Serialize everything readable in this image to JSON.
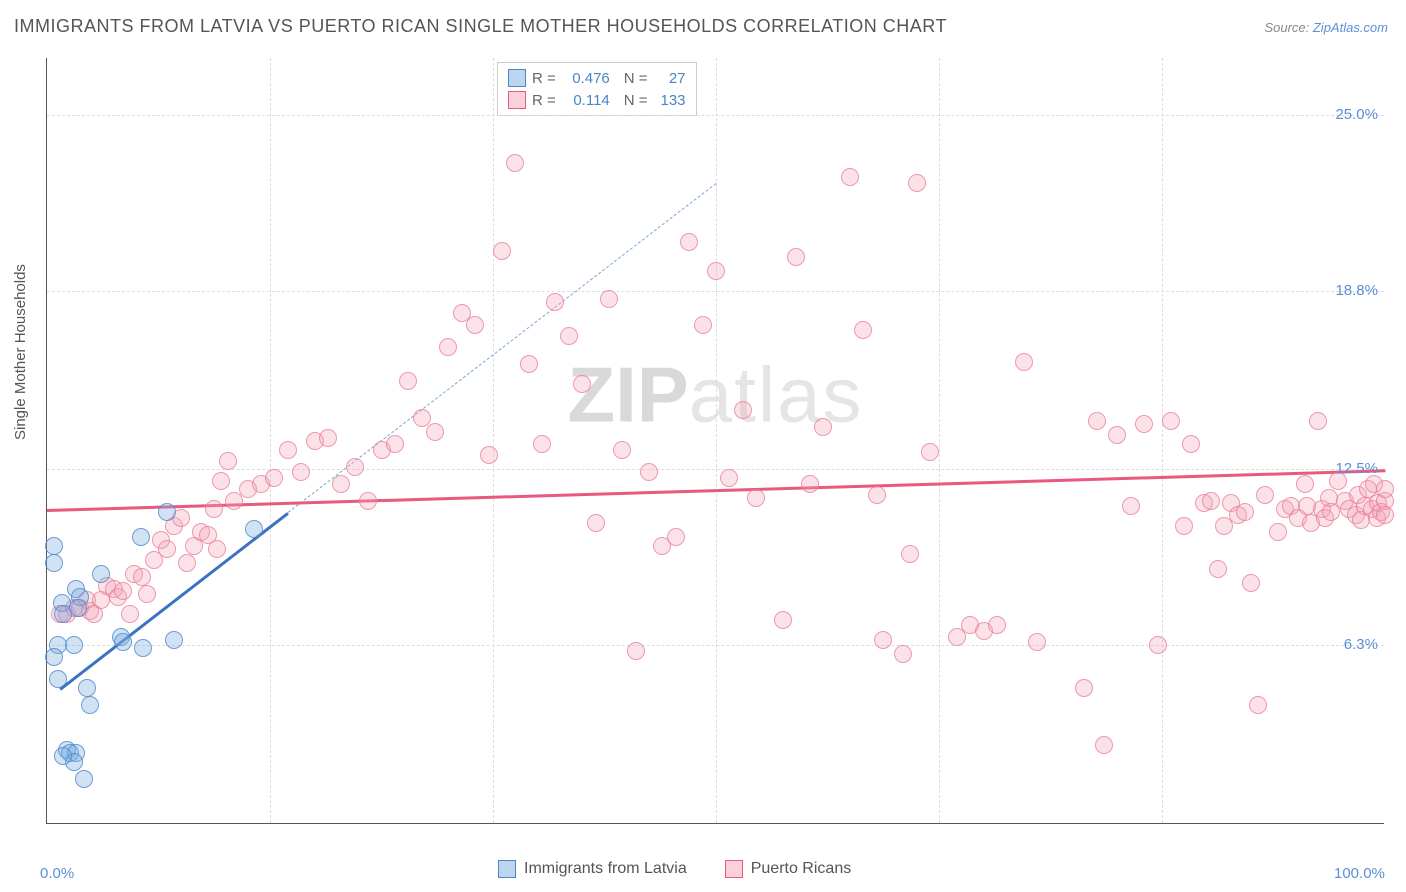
{
  "title": "IMMIGRANTS FROM LATVIA VS PUERTO RICAN SINGLE MOTHER HOUSEHOLDS CORRELATION CHART",
  "source_label": "Source: ",
  "source_link": "ZipAtlas.com",
  "y_axis_label": "Single Mother Households",
  "watermark_part1": "ZIP",
  "watermark_part2": "atlas",
  "chart": {
    "type": "scatter",
    "background_color": "#ffffff",
    "grid_color": "#dddddd",
    "axis_color": "#555555",
    "xlim": [
      0,
      100
    ],
    "ylim": [
      0,
      27
    ],
    "x_ticks": [
      0,
      100
    ],
    "x_tick_labels": [
      "0.0%",
      "100.0%"
    ],
    "x_minor_ticks": [
      16.67,
      33.33,
      50,
      66.67,
      83.33
    ],
    "y_ticks": [
      6.3,
      12.5,
      18.8,
      25.0
    ],
    "y_tick_labels": [
      "6.3%",
      "12.5%",
      "18.8%",
      "25.0%"
    ],
    "label_fontsize": 15,
    "title_fontsize": 18,
    "marker_radius": 9
  },
  "stats": {
    "rows": [
      {
        "swatch": "blue",
        "r_label": "R =",
        "r_value": "0.476",
        "n_label": "N =",
        "n_value": "27"
      },
      {
        "swatch": "pink",
        "r_label": "R =",
        "r_value": "0.114",
        "n_label": "N =",
        "n_value": "133"
      }
    ]
  },
  "legend": {
    "items": [
      {
        "swatch": "blue",
        "label": "Immigrants from Latvia"
      },
      {
        "swatch": "pink",
        "label": "Puerto Ricans"
      }
    ]
  },
  "series": {
    "blue": {
      "color_fill": "rgba(122,173,225,0.35)",
      "color_stroke": "rgba(74,134,198,0.75)",
      "trend": {
        "x1": 1,
        "y1": 4.8,
        "x2": 18,
        "y2": 11.0,
        "extend_x2": 50,
        "extend_y2": 22.6,
        "color": "#3b72c4"
      },
      "points": [
        [
          0.5,
          9.8
        ],
        [
          0.5,
          9.2
        ],
        [
          2.2,
          8.3
        ],
        [
          2.5,
          8.0
        ],
        [
          1.1,
          7.8
        ],
        [
          2.3,
          7.6
        ],
        [
          1.2,
          7.4
        ],
        [
          2.0,
          6.3
        ],
        [
          0.8,
          6.3
        ],
        [
          5.5,
          6.6
        ],
        [
          5.7,
          6.4
        ],
        [
          7.2,
          6.2
        ],
        [
          9.5,
          6.5
        ],
        [
          3.2,
          4.2
        ],
        [
          3.0,
          4.8
        ],
        [
          7.0,
          10.1
        ],
        [
          9.0,
          11.0
        ],
        [
          4.0,
          8.8
        ],
        [
          1.5,
          2.6
        ],
        [
          1.7,
          2.5
        ],
        [
          2.2,
          2.5
        ],
        [
          2.0,
          2.2
        ],
        [
          1.2,
          2.4
        ],
        [
          2.8,
          1.6
        ],
        [
          0.8,
          5.1
        ],
        [
          0.5,
          5.9
        ],
        [
          15.5,
          10.4
        ]
      ]
    },
    "pink": {
      "color_fill": "rgba(244,164,184,0.32)",
      "color_stroke": "rgba(232,120,150,0.7)",
      "trend": {
        "x1": 0,
        "y1": 11.1,
        "x2": 100,
        "y2": 12.5,
        "color": "#e8597d"
      },
      "points": [
        [
          1.0,
          7.4
        ],
        [
          1.5,
          7.4
        ],
        [
          2.0,
          7.6
        ],
        [
          2.5,
          7.6
        ],
        [
          3.0,
          7.9
        ],
        [
          3.2,
          7.5
        ],
        [
          3.5,
          7.4
        ],
        [
          4.0,
          7.9
        ],
        [
          4.5,
          8.4
        ],
        [
          5.0,
          8.3
        ],
        [
          5.3,
          8.0
        ],
        [
          5.7,
          8.2
        ],
        [
          6.2,
          7.4
        ],
        [
          6.5,
          8.8
        ],
        [
          7.1,
          8.7
        ],
        [
          7.5,
          8.1
        ],
        [
          8.0,
          9.3
        ],
        [
          8.5,
          10.0
        ],
        [
          9.0,
          9.7
        ],
        [
          9.5,
          10.5
        ],
        [
          10.0,
          10.8
        ],
        [
          10.5,
          9.2
        ],
        [
          11.0,
          9.8
        ],
        [
          11.5,
          10.3
        ],
        [
          12.0,
          10.2
        ],
        [
          12.5,
          11.1
        ],
        [
          13.0,
          12.1
        ],
        [
          13.5,
          12.8
        ],
        [
          12.7,
          9.7
        ],
        [
          14.0,
          11.4
        ],
        [
          15.0,
          11.8
        ],
        [
          16.0,
          12.0
        ],
        [
          17.0,
          12.2
        ],
        [
          18.0,
          13.2
        ],
        [
          19.0,
          12.4
        ],
        [
          20.0,
          13.5
        ],
        [
          21.0,
          13.6
        ],
        [
          22.0,
          12.0
        ],
        [
          23.0,
          12.6
        ],
        [
          24.0,
          11.4
        ],
        [
          25.0,
          13.2
        ],
        [
          26.0,
          13.4
        ],
        [
          27.0,
          15.6
        ],
        [
          28.0,
          14.3
        ],
        [
          29.0,
          13.8
        ],
        [
          30.0,
          16.8
        ],
        [
          31.0,
          18.0
        ],
        [
          32.0,
          17.6
        ],
        [
          33.0,
          13.0
        ],
        [
          34.0,
          20.2
        ],
        [
          35.0,
          23.3
        ],
        [
          36.0,
          16.2
        ],
        [
          37.0,
          13.4
        ],
        [
          38.0,
          18.4
        ],
        [
          39.0,
          17.2
        ],
        [
          40.0,
          15.5
        ],
        [
          41.0,
          10.6
        ],
        [
          42.0,
          18.5
        ],
        [
          43.0,
          13.2
        ],
        [
          44.0,
          6.1
        ],
        [
          45.0,
          12.4
        ],
        [
          46.0,
          9.8
        ],
        [
          47.0,
          10.1
        ],
        [
          48.0,
          20.5
        ],
        [
          49.0,
          17.6
        ],
        [
          50.0,
          19.5
        ],
        [
          51.0,
          12.2
        ],
        [
          52.0,
          14.6
        ],
        [
          53.0,
          11.5
        ],
        [
          55.0,
          7.2
        ],
        [
          56.0,
          20.0
        ],
        [
          57.0,
          12.0
        ],
        [
          58.0,
          14.0
        ],
        [
          60.0,
          22.8
        ],
        [
          61.0,
          17.4
        ],
        [
          62.0,
          11.6
        ],
        [
          62.5,
          6.5
        ],
        [
          64.0,
          6.0
        ],
        [
          64.5,
          9.5
        ],
        [
          65.0,
          22.6
        ],
        [
          66.0,
          13.1
        ],
        [
          68.0,
          6.6
        ],
        [
          69.0,
          7.0
        ],
        [
          70.0,
          6.8
        ],
        [
          71.0,
          7.0
        ],
        [
          73.0,
          16.3
        ],
        [
          74.0,
          6.4
        ],
        [
          77.5,
          4.8
        ],
        [
          78.5,
          14.2
        ],
        [
          79.0,
          2.8
        ],
        [
          80.0,
          13.7
        ],
        [
          81.0,
          11.2
        ],
        [
          82.0,
          14.1
        ],
        [
          83.0,
          6.3
        ],
        [
          84.0,
          14.2
        ],
        [
          85.0,
          10.5
        ],
        [
          85.5,
          13.4
        ],
        [
          86.5,
          11.3
        ],
        [
          87.0,
          11.4
        ],
        [
          87.5,
          9.0
        ],
        [
          88.0,
          10.5
        ],
        [
          88.5,
          11.3
        ],
        [
          89.0,
          10.9
        ],
        [
          89.5,
          11.0
        ],
        [
          90.0,
          8.5
        ],
        [
          90.5,
          4.2
        ],
        [
          91.0,
          11.6
        ],
        [
          92.0,
          10.3
        ],
        [
          92.5,
          11.1
        ],
        [
          93.0,
          11.2
        ],
        [
          93.5,
          10.8
        ],
        [
          94.0,
          12.0
        ],
        [
          94.2,
          11.2
        ],
        [
          94.5,
          10.6
        ],
        [
          95.0,
          14.2
        ],
        [
          95.3,
          11.1
        ],
        [
          95.5,
          10.8
        ],
        [
          95.8,
          11.5
        ],
        [
          96.0,
          11.0
        ],
        [
          96.5,
          12.1
        ],
        [
          97.0,
          11.4
        ],
        [
          97.3,
          11.1
        ],
        [
          97.8,
          10.9
        ],
        [
          98.0,
          11.6
        ],
        [
          98.2,
          10.7
        ],
        [
          98.5,
          11.2
        ],
        [
          98.7,
          11.8
        ],
        [
          99.0,
          11.1
        ],
        [
          99.2,
          12.0
        ],
        [
          99.4,
          10.8
        ],
        [
          99.5,
          11.3
        ],
        [
          99.7,
          11.0
        ],
        [
          100.0,
          11.4
        ],
        [
          100.0,
          11.8
        ],
        [
          100.0,
          10.9
        ]
      ]
    }
  }
}
